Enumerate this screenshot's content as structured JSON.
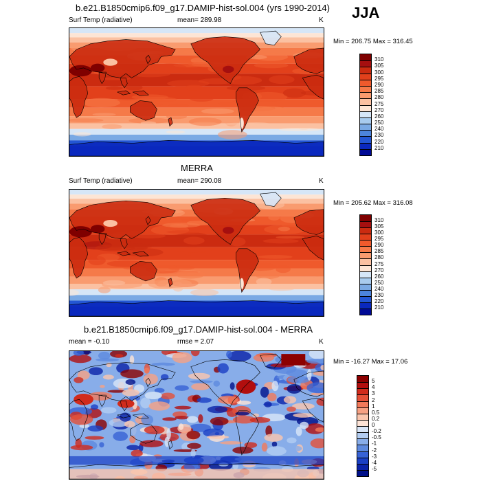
{
  "season": "JJA",
  "panels": [
    {
      "title": "b.e21.B1850cmip6.f09_g17.DAMIP-hist-sol.004 (yrs 1990-2014)",
      "variable": "Surf Temp (radiative)",
      "stat": "mean= 289.98",
      "units": "K",
      "minmax": "Min = 206.75 Max = 316.45",
      "colorbar": {
        "labels": [
          "310",
          "305",
          "300",
          "295",
          "290",
          "285",
          "280",
          "275",
          "270",
          "260",
          "250",
          "240",
          "230",
          "220",
          "210"
        ],
        "colors": [
          "#7f0000",
          "#a50f0f",
          "#cb2b10",
          "#e2401b",
          "#ef5a2c",
          "#f57a49",
          "#f99b6f",
          "#fbc1a2",
          "#fde5d5",
          "#d6e6f7",
          "#a8cbee",
          "#7aa9e4",
          "#4c84dc",
          "#2356d4",
          "#0a28be",
          "#000a96"
        ]
      },
      "map": {
        "kind": "temp-model"
      }
    },
    {
      "title": "MERRA",
      "variable": "Surf Temp (radiative)",
      "stat": "mean= 290.08",
      "units": "K",
      "minmax": "Min = 205.62 Max = 316.08",
      "colorbar": {
        "labels": [
          "310",
          "305",
          "300",
          "295",
          "290",
          "285",
          "280",
          "275",
          "270",
          "260",
          "250",
          "240",
          "230",
          "220",
          "210"
        ],
        "colors": [
          "#7f0000",
          "#a50f0f",
          "#cb2b10",
          "#e2401b",
          "#ef5a2c",
          "#f57a49",
          "#f99b6f",
          "#fbc1a2",
          "#fde5d5",
          "#d6e6f7",
          "#a8cbee",
          "#7aa9e4",
          "#4c84dc",
          "#2356d4",
          "#0a28be",
          "#000a96"
        ]
      },
      "map": {
        "kind": "temp-obs"
      }
    },
    {
      "title": "b.e21.B1850cmip6.f09_g17.DAMIP-hist-sol.004 - MERRA",
      "variable": "mean =  -0.10",
      "stat": "rmse =   2.07",
      "units": "K",
      "minmax": "Min = -16.27 Max =  17.06",
      "colorbar": {
        "labels": [
          "5",
          "4",
          "3",
          "2",
          "1",
          "0.5",
          "0.2",
          "0",
          "-0.2",
          "-0.5",
          "-1",
          "-2",
          "-3",
          "-4",
          "-5"
        ],
        "colors": [
          "#8c0000",
          "#b20e0e",
          "#d12b1c",
          "#e55038",
          "#f2795a",
          "#f7a183",
          "#fbc6ae",
          "#fde3d6",
          "#d9e6f8",
          "#b3cdf2",
          "#88ade9",
          "#5e8ade",
          "#3762d5",
          "#1a3fc4",
          "#0a22a8",
          "#00108a"
        ]
      },
      "map": {
        "kind": "diff"
      }
    }
  ]
}
